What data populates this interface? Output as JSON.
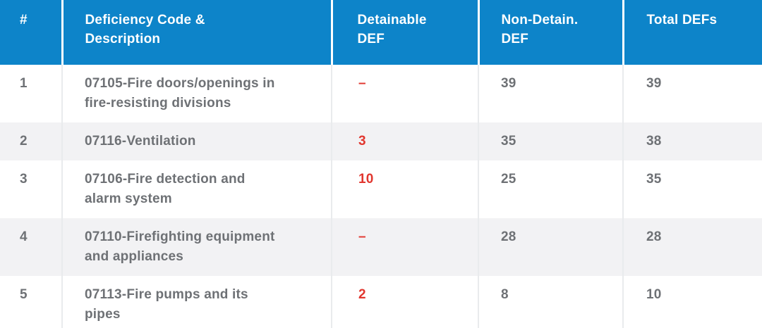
{
  "theme": {
    "header_bg": "#0d84c9",
    "header_text": "#ffffff",
    "body_text": "#6e7175",
    "accent_red": "#e1362e",
    "row_alt_bg": "#f2f2f4",
    "row_bg": "#ffffff",
    "header_sep": "#ffffff",
    "body_sep": "#e9ebed"
  },
  "table": {
    "columns": [
      {
        "id": "num",
        "label": "#"
      },
      {
        "id": "description",
        "label": "Deficiency Code &\nDescription"
      },
      {
        "id": "detainable",
        "label": "Detainable\nDEF"
      },
      {
        "id": "non_detain",
        "label": "Non-Detain.\nDEF"
      },
      {
        "id": "total",
        "label": "Total DEFs"
      }
    ],
    "rows": [
      {
        "num": "1",
        "description": "07105-Fire doors/openings in fire-resisting divisions",
        "detainable": "–",
        "non_detain": "39",
        "total": "39"
      },
      {
        "num": "2",
        "description": "07116-Ventilation",
        "detainable": "3",
        "non_detain": "35",
        "total": "38"
      },
      {
        "num": "3",
        "description": "07106-Fire detection and alarm system",
        "detainable": "10",
        "non_detain": "25",
        "total": "35"
      },
      {
        "num": "4",
        "description": "07110-Firefighting equipment and appliances",
        "detainable": "–",
        "non_detain": "28",
        "total": "28"
      },
      {
        "num": "5",
        "description": "07113-Fire pumps and its pipes",
        "detainable": "2",
        "non_detain": "8",
        "total": "10"
      }
    ]
  }
}
